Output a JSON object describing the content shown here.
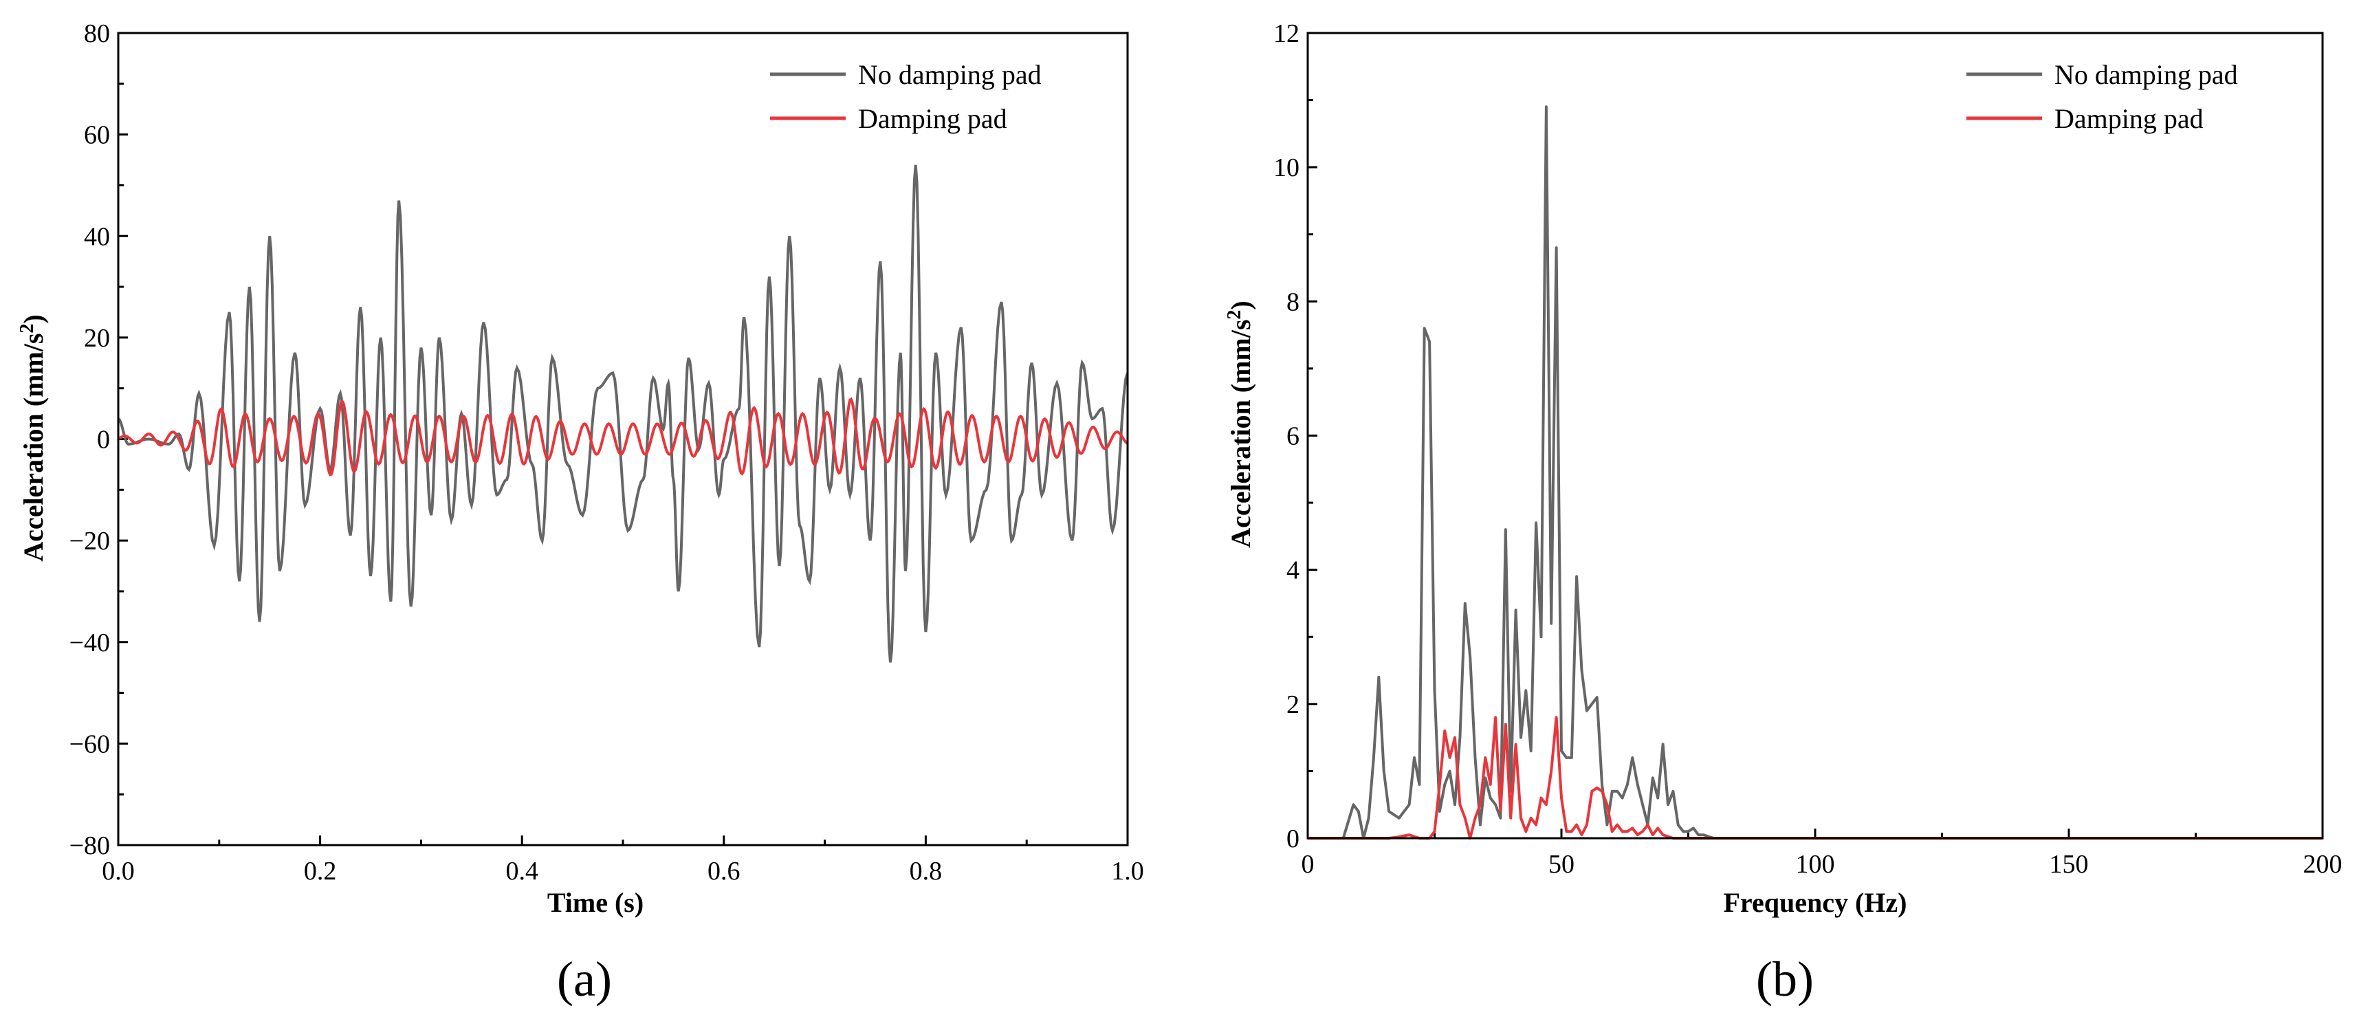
{
  "chart_data": [
    {
      "type": "line",
      "panel_label": "(a)",
      "xlabel": "Time (s)",
      "ylabel": "Acceleration (mm/s",
      "ylabel_sup": "2",
      "ylabel_end": ")",
      "xlim": [
        0,
        1
      ],
      "ylim": [
        -80,
        80
      ],
      "xticks": [
        0,
        0.2,
        0.4,
        0.6,
        0.8,
        1.0
      ],
      "xtick_labels": [
        "0.0",
        "0.2",
        "0.4",
        "0.6",
        "0.8",
        "1.0"
      ],
      "yticks": [
        -80,
        -60,
        -40,
        -20,
        0,
        20,
        40,
        60,
        80
      ],
      "ytick_labels": [
        "−80",
        "−60",
        "−40",
        "−20",
        "0",
        "20",
        "40",
        "60",
        "80"
      ],
      "legend_position": "top-right",
      "series": [
        {
          "name": "No damping pad",
          "color": "#666666",
          "peaks": [
            [
              0.0,
              4
            ],
            [
              0.01,
              -1
            ],
            [
              0.03,
              0
            ],
            [
              0.05,
              -1
            ],
            [
              0.06,
              1
            ],
            [
              0.07,
              -6
            ],
            [
              0.08,
              9
            ],
            [
              0.095,
              -21
            ],
            [
              0.11,
              25
            ],
            [
              0.12,
              -28
            ],
            [
              0.13,
              30
            ],
            [
              0.14,
              -36
            ],
            [
              0.15,
              40
            ],
            [
              0.16,
              -26
            ],
            [
              0.175,
              17
            ],
            [
              0.185,
              -13
            ],
            [
              0.2,
              6
            ],
            [
              0.21,
              -6
            ],
            [
              0.22,
              9
            ],
            [
              0.23,
              -19
            ],
            [
              0.24,
              26
            ],
            [
              0.25,
              -27
            ],
            [
              0.26,
              20
            ],
            [
              0.27,
              -32
            ],
            [
              0.278,
              47
            ],
            [
              0.29,
              -33
            ],
            [
              0.3,
              18
            ],
            [
              0.31,
              -15
            ],
            [
              0.318,
              20
            ],
            [
              0.33,
              -16
            ],
            [
              0.34,
              5
            ],
            [
              0.35,
              -13
            ],
            [
              0.362,
              23
            ],
            [
              0.375,
              -11
            ],
            [
              0.385,
              -8
            ],
            [
              0.395,
              14
            ],
            [
              0.41,
              -5
            ],
            [
              0.42,
              -20
            ],
            [
              0.43,
              16
            ],
            [
              0.445,
              -5
            ],
            [
              0.46,
              -15
            ],
            [
              0.475,
              10
            ],
            [
              0.49,
              13
            ],
            [
              0.505,
              -18
            ],
            [
              0.52,
              -8
            ],
            [
              0.53,
              12
            ],
            [
              0.54,
              2
            ],
            [
              0.545,
              11
            ],
            [
              0.55,
              -8
            ],
            [
              0.555,
              -30
            ],
            [
              0.565,
              16
            ],
            [
              0.575,
              -2
            ],
            [
              0.585,
              11
            ],
            [
              0.595,
              -11
            ],
            [
              0.6,
              -4
            ],
            [
              0.615,
              6
            ],
            [
              0.62,
              24
            ],
            [
              0.635,
              -41
            ],
            [
              0.645,
              32
            ],
            [
              0.655,
              -25
            ],
            [
              0.665,
              40
            ],
            [
              0.675,
              -17
            ],
            [
              0.685,
              -28
            ],
            [
              0.695,
              12
            ],
            [
              0.705,
              -10
            ],
            [
              0.715,
              14
            ],
            [
              0.725,
              -11
            ],
            [
              0.735,
              12
            ],
            [
              0.745,
              -20
            ],
            [
              0.755,
              35
            ],
            [
              0.765,
              -44
            ],
            [
              0.775,
              17
            ],
            [
              0.78,
              -26
            ],
            [
              0.79,
              54
            ],
            [
              0.8,
              -38
            ],
            [
              0.81,
              17
            ],
            [
              0.82,
              -11
            ],
            [
              0.835,
              22
            ],
            [
              0.845,
              -20
            ],
            [
              0.86,
              -10
            ],
            [
              0.875,
              27
            ],
            [
              0.885,
              -20
            ],
            [
              0.895,
              -11
            ],
            [
              0.905,
              15
            ],
            [
              0.915,
              -11
            ],
            [
              0.93,
              11
            ],
            [
              0.945,
              -20
            ],
            [
              0.955,
              15
            ],
            [
              0.965,
              4
            ],
            [
              0.975,
              6
            ],
            [
              0.985,
              -18
            ],
            [
              1.0,
              13
            ]
          ]
        },
        {
          "name": "Damping pad",
          "color": "#e8363b",
          "amplitudes": [
            [
              0.0,
              0.5
            ],
            [
              0.06,
              1.5
            ],
            [
              0.1,
              6
            ],
            [
              0.15,
              4
            ],
            [
              0.2,
              5
            ],
            [
              0.215,
              8
            ],
            [
              0.25,
              5
            ],
            [
              0.3,
              4.5
            ],
            [
              0.35,
              4.5
            ],
            [
              0.4,
              5
            ],
            [
              0.45,
              3
            ],
            [
              0.5,
              3
            ],
            [
              0.55,
              3
            ],
            [
              0.6,
              4
            ],
            [
              0.615,
              7
            ],
            [
              0.65,
              5
            ],
            [
              0.7,
              5
            ],
            [
              0.725,
              8
            ],
            [
              0.75,
              4
            ],
            [
              0.8,
              6
            ],
            [
              0.85,
              4.5
            ],
            [
              0.9,
              4.5
            ],
            [
              0.95,
              3
            ],
            [
              1.0,
              1
            ]
          ],
          "period": 0.024
        }
      ]
    },
    {
      "type": "line",
      "panel_label": "(b)",
      "xlabel": "Frequency (Hz)",
      "ylabel": "Acceleration (mm/s",
      "ylabel_sup": "2",
      "ylabel_end": ")",
      "xlim": [
        0,
        200
      ],
      "ylim": [
        0,
        12
      ],
      "xticks": [
        0,
        50,
        100,
        150,
        200
      ],
      "xtick_labels": [
        "0",
        "50",
        "100",
        "150",
        "200"
      ],
      "yticks": [
        0,
        2,
        4,
        6,
        8,
        10,
        12
      ],
      "ytick_labels": [
        "0",
        "2",
        "4",
        "6",
        "8",
        "10",
        "12"
      ],
      "legend_position": "top-right",
      "series": [
        {
          "name": "No damping pad",
          "color": "#666666",
          "x": [
            0,
            7,
            9,
            10,
            11,
            12,
            13,
            14,
            15,
            16,
            18,
            20,
            21,
            22,
            23,
            24,
            25,
            26,
            27,
            28,
            29,
            30,
            31,
            32,
            33,
            34,
            35,
            36,
            37,
            38,
            39,
            40,
            41,
            42,
            43,
            44,
            45,
            46,
            47,
            48,
            49,
            50,
            51,
            52,
            53,
            54,
            55,
            56,
            57,
            58,
            59,
            60,
            61,
            62,
            63,
            64,
            65,
            66,
            67,
            68,
            69,
            70,
            71,
            72,
            73,
            74,
            75,
            76,
            77,
            78,
            80,
            200
          ],
          "y": [
            0,
            0,
            0.5,
            0.4,
            0,
            0.3,
            1.2,
            2.4,
            1.0,
            0.4,
            0.3,
            0.5,
            1.2,
            0.8,
            7.6,
            7.4,
            2.2,
            0.4,
            0.8,
            1.0,
            0.5,
            1.5,
            3.5,
            2.7,
            1.2,
            0.2,
            0.9,
            0.6,
            0.5,
            0.3,
            4.6,
            0.7,
            3.4,
            1.5,
            2.2,
            1.3,
            4.7,
            3.0,
            10.9,
            3.2,
            8.8,
            1.3,
            1.2,
            1.2,
            3.9,
            2.5,
            1.9,
            2.0,
            2.1,
            0.8,
            0.2,
            0.7,
            0.7,
            0.6,
            0.8,
            1.2,
            0.8,
            0.5,
            0.2,
            0.9,
            0.6,
            1.4,
            0.5,
            0.7,
            0.2,
            0.1,
            0.1,
            0.15,
            0.05,
            0.05,
            0,
            0
          ]
        },
        {
          "name": "Damping pad",
          "color": "#e8363b",
          "x": [
            0,
            16,
            18,
            20,
            22,
            24,
            25,
            26,
            27,
            28,
            29,
            30,
            31,
            32,
            33,
            34,
            35,
            36,
            37,
            38,
            39,
            40,
            41,
            42,
            43,
            44,
            45,
            46,
            47,
            48,
            49,
            50,
            51,
            52,
            53,
            54,
            55,
            56,
            57,
            58,
            59,
            60,
            61,
            62,
            63,
            64,
            65,
            66,
            67,
            68,
            69,
            70,
            72,
            75,
            200
          ],
          "y": [
            0,
            0,
            0.02,
            0.05,
            0,
            0,
            0.1,
            0.8,
            1.6,
            1.2,
            1.5,
            0.5,
            0.3,
            0,
            0.3,
            0.5,
            1.2,
            0.8,
            1.8,
            0.4,
            1.7,
            0.3,
            1.4,
            0.3,
            0.1,
            0.3,
            0.2,
            0.6,
            0.5,
            1.0,
            1.8,
            0.6,
            0.1,
            0.1,
            0.2,
            0.05,
            0.2,
            0.7,
            0.75,
            0.7,
            0.5,
            0.1,
            0.2,
            0.1,
            0.1,
            0.15,
            0.05,
            0.1,
            0.2,
            0.05,
            0.15,
            0.05,
            0,
            0,
            0
          ]
        }
      ]
    }
  ]
}
